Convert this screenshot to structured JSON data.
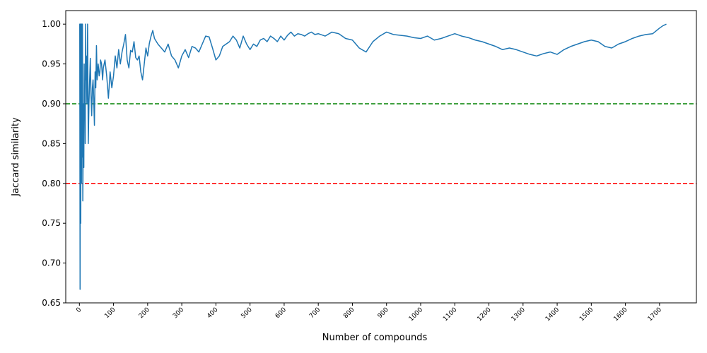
{
  "chart_data": {
    "type": "line",
    "title": "",
    "xlabel": "Number of compounds",
    "ylabel": "Jaccard similarity",
    "xlim": [
      -40,
      1808
    ],
    "ylim": [
      0.65,
      1.017
    ],
    "grid": false,
    "legend": "none",
    "x_ticks": [
      0,
      100,
      200,
      300,
      400,
      500,
      600,
      700,
      800,
      900,
      1000,
      1100,
      1200,
      1300,
      1400,
      1500,
      1600,
      1700
    ],
    "y_ticks": [
      "0.65",
      "0.70",
      "0.75",
      "0.80",
      "0.85",
      "0.90",
      "0.95",
      "1.00"
    ],
    "reference_lines": [
      {
        "y": 0.9,
        "color": "#008000",
        "style": "dashed"
      },
      {
        "y": 0.8,
        "color": "#ff0000",
        "style": "dashed"
      }
    ],
    "series": [
      {
        "color": "#1f77b4",
        "x": [
          0,
          1,
          2,
          3,
          4,
          5,
          6,
          7,
          8,
          9,
          10,
          11,
          12,
          13,
          14,
          15,
          16,
          17,
          18,
          19,
          20,
          22,
          24,
          26,
          28,
          30,
          32,
          34,
          36,
          38,
          40,
          42,
          44,
          46,
          48,
          50,
          52,
          55,
          58,
          60,
          62,
          65,
          68,
          70,
          75,
          80,
          85,
          90,
          95,
          100,
          105,
          110,
          115,
          120,
          125,
          130,
          135,
          140,
          145,
          150,
          155,
          160,
          165,
          170,
          175,
          180,
          185,
          190,
          195,
          200,
          205,
          210,
          215,
          220,
          230,
          240,
          250,
          260,
          270,
          280,
          290,
          300,
          310,
          320,
          330,
          340,
          350,
          360,
          370,
          380,
          390,
          400,
          410,
          420,
          430,
          440,
          450,
          460,
          470,
          480,
          490,
          500,
          510,
          520,
          530,
          540,
          550,
          560,
          570,
          580,
          590,
          600,
          610,
          620,
          630,
          640,
          650,
          660,
          670,
          680,
          690,
          700,
          720,
          740,
          760,
          780,
          800,
          820,
          840,
          860,
          880,
          900,
          920,
          940,
          960,
          980,
          1000,
          1020,
          1040,
          1060,
          1080,
          1100,
          1120,
          1140,
          1160,
          1180,
          1200,
          1220,
          1240,
          1260,
          1280,
          1300,
          1320,
          1340,
          1360,
          1380,
          1400,
          1420,
          1440,
          1460,
          1480,
          1500,
          1520,
          1540,
          1560,
          1580,
          1600,
          1620,
          1640,
          1660,
          1680,
          1700,
          1710,
          1720
        ],
        "y": [
          1.0,
          1.0,
          0.667,
          1.0,
          0.75,
          1.0,
          0.8,
          1.0,
          0.833,
          1.0,
          0.778,
          0.85,
          0.9,
          0.82,
          0.95,
          0.88,
          0.92,
          0.85,
          1.0,
          0.93,
          0.96,
          0.9,
          1.0,
          0.85,
          0.9,
          0.93,
          0.957,
          0.91,
          0.885,
          0.92,
          0.93,
          0.905,
          0.873,
          0.94,
          0.92,
          0.973,
          0.93,
          0.95,
          0.935,
          0.94,
          0.955,
          0.95,
          0.93,
          0.945,
          0.955,
          0.935,
          0.907,
          0.94,
          0.92,
          0.935,
          0.96,
          0.945,
          0.968,
          0.95,
          0.965,
          0.975,
          0.987,
          0.955,
          0.945,
          0.967,
          0.965,
          0.978,
          0.958,
          0.955,
          0.96,
          0.94,
          0.93,
          0.95,
          0.97,
          0.96,
          0.976,
          0.985,
          0.992,
          0.982,
          0.975,
          0.97,
          0.965,
          0.975,
          0.96,
          0.955,
          0.945,
          0.96,
          0.968,
          0.958,
          0.972,
          0.97,
          0.965,
          0.975,
          0.985,
          0.984,
          0.97,
          0.955,
          0.96,
          0.972,
          0.975,
          0.978,
          0.985,
          0.98,
          0.97,
          0.985,
          0.975,
          0.968,
          0.975,
          0.972,
          0.98,
          0.982,
          0.978,
          0.985,
          0.982,
          0.978,
          0.985,
          0.98,
          0.986,
          0.99,
          0.985,
          0.988,
          0.987,
          0.985,
          0.988,
          0.99,
          0.987,
          0.988,
          0.985,
          0.99,
          0.988,
          0.982,
          0.98,
          0.97,
          0.965,
          0.978,
          0.985,
          0.99,
          0.987,
          0.986,
          0.985,
          0.983,
          0.982,
          0.985,
          0.98,
          0.982,
          0.985,
          0.988,
          0.985,
          0.983,
          0.98,
          0.978,
          0.975,
          0.972,
          0.968,
          0.97,
          0.968,
          0.965,
          0.962,
          0.96,
          0.963,
          0.965,
          0.962,
          0.968,
          0.972,
          0.975,
          0.978,
          0.98,
          0.978,
          0.972,
          0.97,
          0.975,
          0.978,
          0.982,
          0.985,
          0.987,
          0.988,
          0.995,
          0.998,
          1.0
        ]
      }
    ]
  }
}
